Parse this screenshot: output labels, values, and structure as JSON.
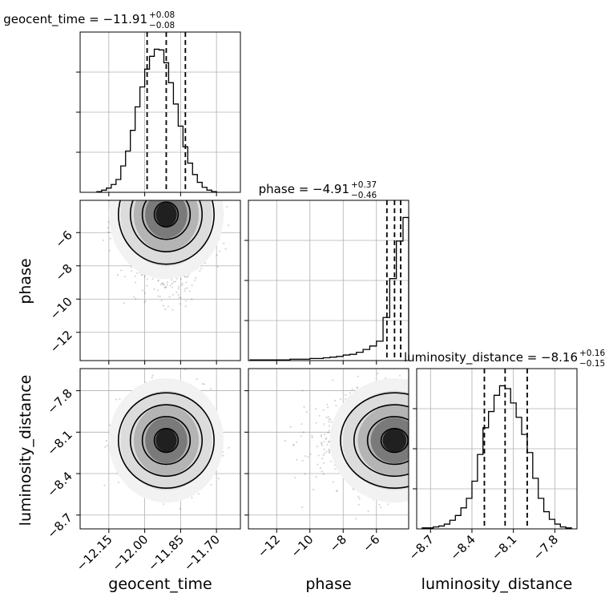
{
  "chart_data": {
    "type": "corner",
    "parameters": [
      "geocent_time",
      "phase",
      "luminosity_distance"
    ],
    "ranges": {
      "geocent_time": [
        -12.27,
        -11.6
      ],
      "phase": [
        -13.7,
        -4.06
      ],
      "luminosity_distance": [
        -8.8,
        -7.64
      ]
    },
    "ticks": {
      "geocent_time": [
        "−12.15",
        "−12.00",
        "−11.85",
        "−11.70"
      ],
      "phase": [
        "−12",
        "−10",
        "−8",
        "−6"
      ],
      "luminosity_distance": [
        "−8.7",
        "−8.4",
        "−8.1",
        "−7.8"
      ]
    },
    "tick_values": {
      "geocent_time": [
        -12.15,
        -12.0,
        -11.85,
        -11.7
      ],
      "phase": [
        -12,
        -10,
        -8,
        -6
      ],
      "luminosity_distance": [
        -8.7,
        -8.4,
        -8.1,
        -7.8
      ]
    },
    "titles": {
      "geocent_time": {
        "text": "geocent_time = −11.91",
        "plus": "+0.08",
        "minus": "−0.08"
      },
      "phase": {
        "text": "phase = −4.91",
        "plus": "+0.37",
        "minus": "−0.46"
      },
      "luminosity_distance": {
        "text": "luminosity_distance = −8.16",
        "plus": "+0.16",
        "minus": "−0.15"
      }
    },
    "quantiles": {
      "geocent_time": [
        -11.99,
        -11.91,
        -11.83
      ],
      "phase": [
        -5.37,
        -4.91,
        -4.54
      ],
      "luminosity_distance": [
        -8.31,
        -8.16,
        -8.0
      ]
    },
    "histograms": {
      "geocent_time": {
        "edges": [
          -12.2,
          -12.18,
          -12.16,
          -12.14,
          -12.12,
          -12.1,
          -12.08,
          -12.06,
          -12.04,
          -12.02,
          -12.0,
          -11.98,
          -11.96,
          -11.94,
          -11.92,
          -11.9,
          -11.88,
          -11.86,
          -11.84,
          -11.82,
          -11.8,
          -11.78,
          -11.76,
          -11.74,
          -11.72,
          -11.7
        ],
        "counts": [
          1,
          3,
          6,
          11,
          18,
          37,
          58,
          87,
          120,
          148,
          173,
          191,
          201,
          200,
          182,
          154,
          124,
          93,
          64,
          41,
          25,
          14,
          7,
          3,
          1
        ]
      },
      "phase": {
        "edges": [
          -13.6,
          -13.2,
          -12.8,
          -12.4,
          -12.0,
          -11.6,
          -11.2,
          -10.8,
          -10.4,
          -10.0,
          -9.6,
          -9.2,
          -8.8,
          -8.4,
          -8.0,
          -7.6,
          -7.2,
          -6.8,
          -6.4,
          -6.0,
          -5.6,
          -5.2,
          -4.8,
          -4.4,
          -4.06
        ],
        "counts": [
          1,
          1,
          1,
          1,
          1,
          1,
          2,
          2,
          2,
          3,
          3,
          4,
          5,
          6,
          8,
          9,
          12,
          16,
          21,
          28,
          62,
          118,
          172,
          206
        ]
      },
      "luminosity_distance": {
        "edges": [
          -8.76,
          -8.72,
          -8.68,
          -8.64,
          -8.6,
          -8.56,
          -8.52,
          -8.48,
          -8.44,
          -8.4,
          -8.36,
          -8.32,
          -8.28,
          -8.24,
          -8.2,
          -8.16,
          -8.12,
          -8.08,
          -8.04,
          -8.0,
          -7.96,
          -7.92,
          -7.88,
          -7.84,
          -7.8,
          -7.76,
          -7.72,
          -7.68
        ],
        "counts": [
          1,
          1,
          2,
          3,
          5,
          9,
          14,
          22,
          32,
          50,
          78,
          106,
          123,
          140,
          150,
          147,
          132,
          117,
          99,
          80,
          53,
          32,
          18,
          10,
          5,
          2,
          1
        ]
      }
    },
    "posterior_2d": [
      {
        "x": "geocent_time",
        "y": "phase",
        "mean": [
          -11.91,
          -4.91
        ],
        "sd": [
          0.08,
          1.3
        ],
        "n": 2600
      },
      {
        "x": "geocent_time",
        "y": "luminosity_distance",
        "mean": [
          -11.91,
          -8.16
        ],
        "sd": [
          0.08,
          0.15
        ],
        "n": 2400
      },
      {
        "x": "phase",
        "y": "luminosity_distance",
        "mean": [
          -4.91,
          -8.16
        ],
        "sd": [
          1.3,
          0.15
        ],
        "n": 2400
      }
    ],
    "grid": true,
    "colors": {
      "line": "#000000",
      "grid": "#b0b0b0",
      "points": "#000000"
    }
  }
}
